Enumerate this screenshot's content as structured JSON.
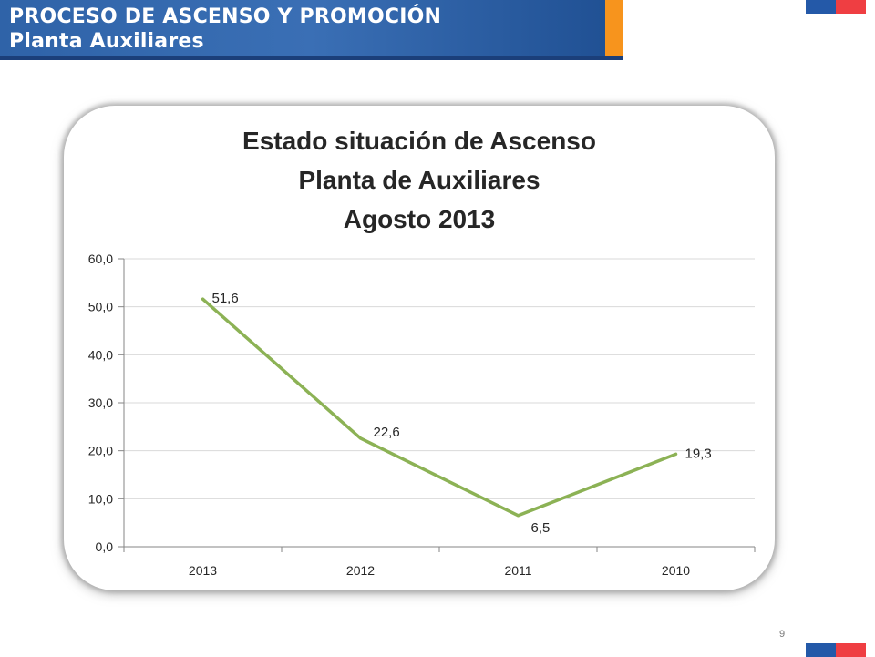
{
  "header": {
    "title_line1": "PROCESO DE ASCENSO Y PROMOCIÓN",
    "title_line2": "Planta Auxiliares"
  },
  "page_number": "9",
  "colors": {
    "header_blue": "#2f63a8",
    "accent_orange": "#f7941d",
    "flag_blue": "#2459a8",
    "flag_red": "#ef3e42",
    "series_line": "#8cb255"
  },
  "chart_data": {
    "type": "line",
    "title": [
      "Estado situación de Ascenso",
      "Planta de Auxiliares",
      "Agosto 2013"
    ],
    "categories": [
      "2013",
      "2012",
      "2011",
      "2010"
    ],
    "series": [
      {
        "values": [
          51.6,
          22.6,
          6.5,
          19.3
        ],
        "labels": [
          "51,6",
          "22,6",
          "6,5",
          "19,3"
        ]
      }
    ],
    "y_ticks": [
      "0,0",
      "10,0",
      "20,0",
      "30,0",
      "40,0",
      "50,0",
      "60,0"
    ],
    "ylim": [
      0,
      60
    ],
    "grid": true,
    "legend": "none"
  }
}
